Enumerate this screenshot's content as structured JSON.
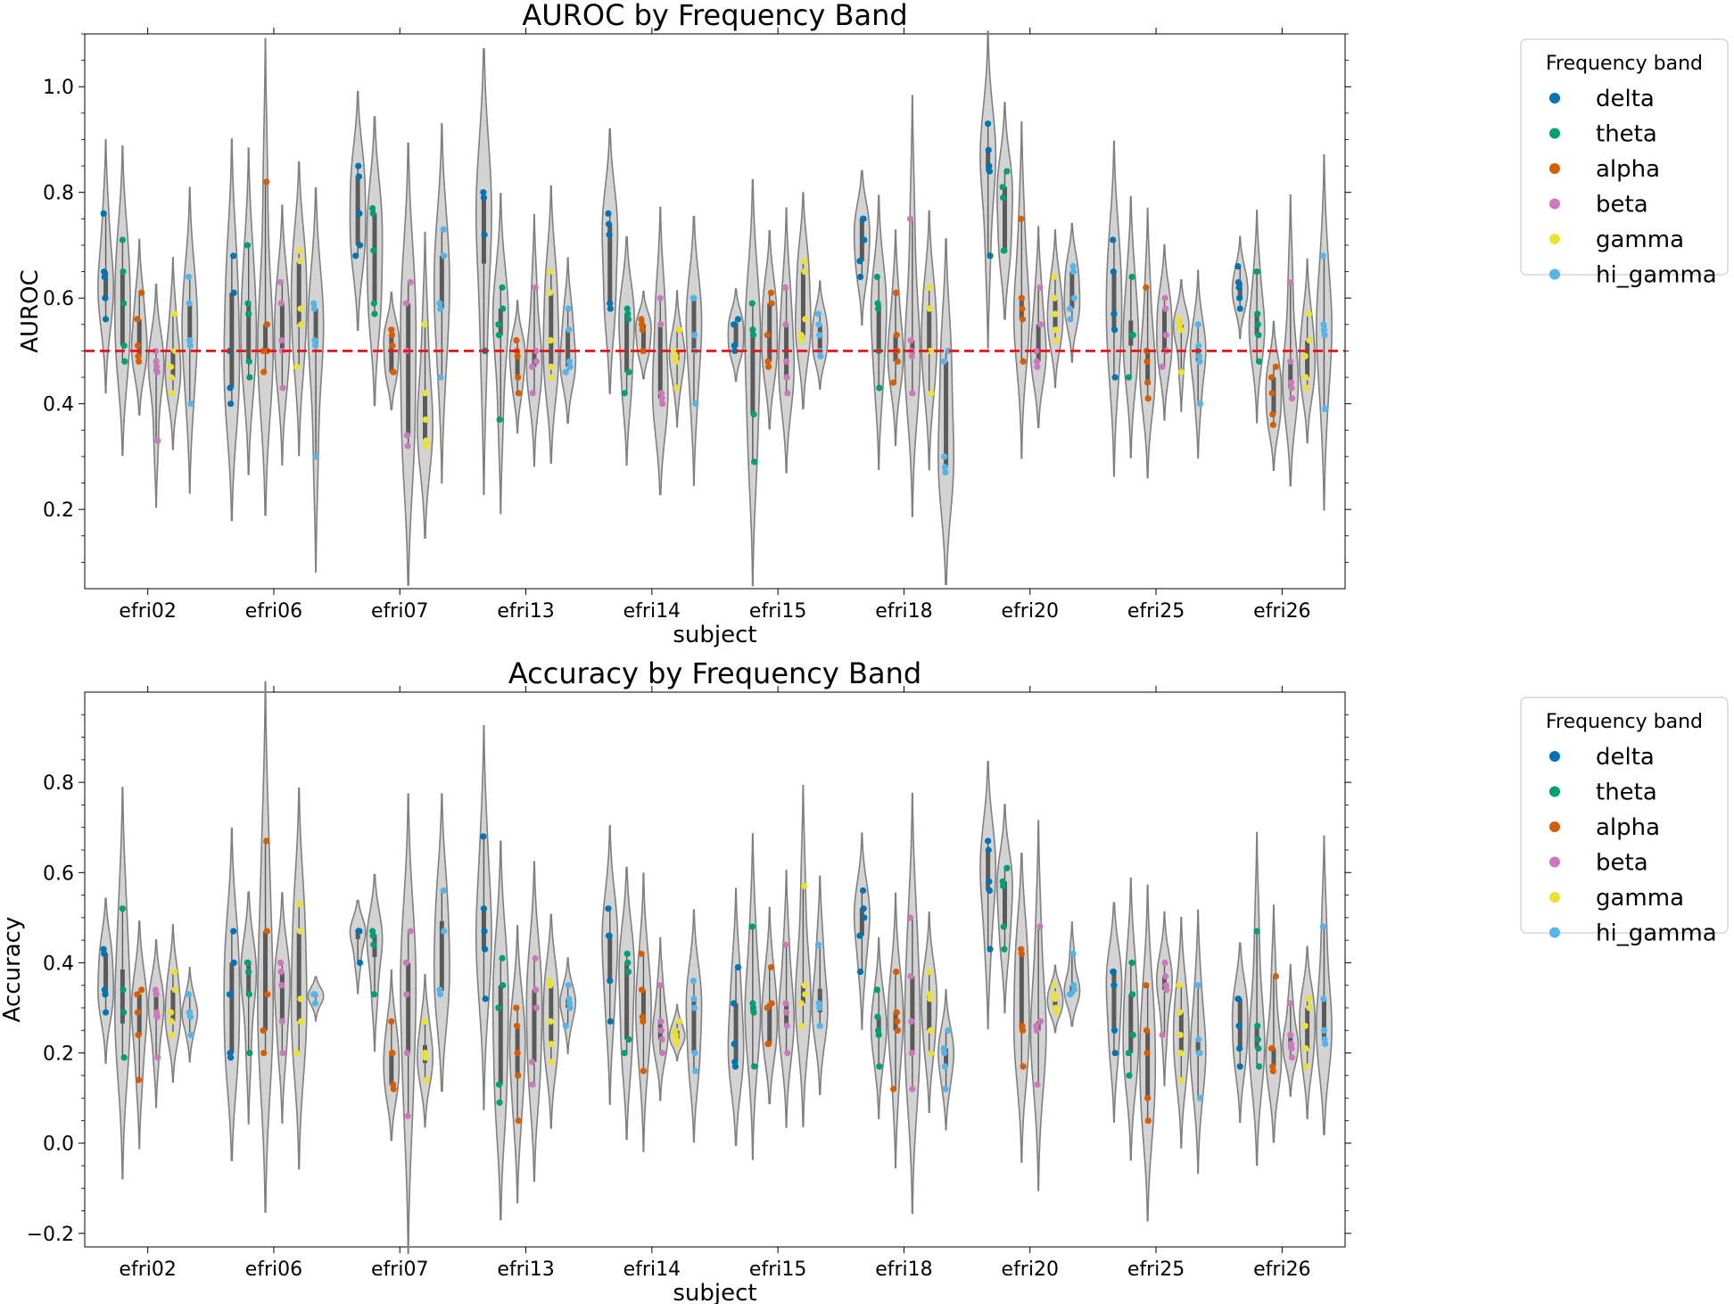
{
  "colors": {
    "delta": "#0173b2",
    "theta": "#029e73",
    "alpha": "#d55e00",
    "beta": "#cc78bc",
    "gamma": "#ece133",
    "hi_gamma": "#56b4e9",
    "violin_fill": "#d3d3d3",
    "violin_edge": "#808080",
    "chance_line": "#e41a1c"
  },
  "chart_data": [
    {
      "type": "violin",
      "title": "AUROC by Frequency Band",
      "xlabel": "subject",
      "ylabel": "AUROC",
      "ylim": [
        0.05,
        1.1
      ],
      "yticks": [
        "0.2",
        "0.4",
        "0.6",
        "0.8",
        "1.0"
      ],
      "reference_line": 0.5,
      "legend": {
        "title": "Frequency band",
        "placement": "outside-right",
        "entries": [
          "delta",
          "theta",
          "alpha",
          "beta",
          "gamma",
          "hi_gamma"
        ]
      },
      "categories": [
        "efri02",
        "efri06",
        "efri07",
        "efri13",
        "efri14",
        "efri15",
        "efri18",
        "efri20",
        "efri25",
        "efri26"
      ],
      "series": [
        {
          "name": "delta",
          "values": [
            [
              0.76,
              0.65,
              0.64,
              0.6,
              0.56
            ],
            [
              0.68,
              0.61,
              0.5,
              0.43,
              0.4
            ],
            [
              0.85,
              0.83,
              0.76,
              0.7,
              0.68
            ],
            [
              0.8,
              0.79,
              0.72,
              0.5
            ],
            [
              0.76,
              0.74,
              0.72,
              0.59,
              0.58
            ],
            [
              0.56,
              0.55,
              0.51,
              0.5
            ],
            [
              0.75,
              0.75,
              0.71,
              0.67,
              0.64
            ],
            [
              0.93,
              0.88,
              0.85,
              0.84,
              0.68
            ],
            [
              0.71,
              0.65,
              0.57,
              0.54,
              0.45
            ],
            [
              0.66,
              0.63,
              0.62,
              0.6,
              0.58
            ]
          ]
        },
        {
          "name": "theta",
          "values": [
            [
              0.71,
              0.65,
              0.59,
              0.51,
              0.48
            ],
            [
              0.7,
              0.59,
              0.57,
              0.48,
              0.45
            ],
            [
              0.77,
              0.76,
              0.69,
              0.59,
              0.57
            ],
            [
              0.62,
              0.58,
              0.55,
              0.53,
              0.37
            ],
            [
              0.58,
              0.57,
              0.56,
              0.46,
              0.42
            ],
            [
              0.59,
              0.54,
              0.53,
              0.38,
              0.29
            ],
            [
              0.64,
              0.59,
              0.58,
              0.5,
              0.43
            ],
            [
              0.84,
              0.81,
              0.79,
              0.69,
              0.69
            ],
            [
              0.64,
              0.53,
              0.53,
              0.45
            ],
            [
              0.65,
              0.57,
              0.55,
              0.53,
              0.48
            ]
          ]
        },
        {
          "name": "alpha",
          "values": [
            [
              0.61,
              0.56,
              0.51,
              0.49,
              0.48
            ],
            [
              0.82,
              0.55,
              0.5,
              0.5,
              0.46
            ],
            [
              0.54,
              0.53,
              0.51,
              0.46,
              0.46
            ],
            [
              0.52,
              0.5,
              0.49,
              0.45,
              0.42
            ],
            [
              0.56,
              0.55,
              0.54,
              0.5,
              0.5
            ],
            [
              0.61,
              0.59,
              0.53,
              0.48,
              0.47
            ],
            [
              0.61,
              0.53,
              0.5,
              0.48,
              0.44
            ],
            [
              0.75,
              0.6,
              0.58,
              0.56,
              0.48
            ],
            [
              0.62,
              0.5,
              0.48,
              0.44,
              0.41
            ],
            [
              0.47,
              0.45,
              0.42,
              0.38,
              0.36
            ]
          ]
        },
        {
          "name": "beta",
          "values": [
            [
              0.5,
              0.48,
              0.47,
              0.46,
              0.33
            ],
            [
              0.63,
              0.59,
              0.52,
              0.5,
              0.43
            ],
            [
              0.63,
              0.59,
              0.5,
              0.34,
              0.32
            ],
            [
              0.62,
              0.5,
              0.48,
              0.47,
              0.42
            ],
            [
              0.6,
              0.55,
              0.42,
              0.41,
              0.4
            ],
            [
              0.62,
              0.55,
              0.48,
              0.45,
              0.42
            ],
            [
              0.75,
              0.52,
              0.5,
              0.49,
              0.42
            ],
            [
              0.62,
              0.55,
              0.5,
              0.48,
              0.47
            ],
            [
              0.6,
              0.58,
              0.53,
              0.5,
              0.47
            ],
            [
              0.63,
              0.48,
              0.44,
              0.43,
              0.41
            ]
          ]
        },
        {
          "name": "gamma",
          "values": [
            [
              0.57,
              0.5,
              0.47,
              0.45,
              0.42
            ],
            [
              0.69,
              0.67,
              0.58,
              0.55,
              0.47
            ],
            [
              0.55,
              0.42,
              0.37,
              0.33,
              0.32
            ],
            [
              0.65,
              0.61,
              0.52,
              0.47,
              0.45
            ],
            [
              0.54,
              0.5,
              0.49,
              0.48,
              0.43
            ],
            [
              0.67,
              0.65,
              0.56,
              0.53,
              0.52
            ],
            [
              0.62,
              0.58,
              0.5,
              0.5,
              0.42
            ],
            [
              0.64,
              0.6,
              0.57,
              0.54,
              0.52
            ],
            [
              0.56,
              0.55,
              0.54,
              0.54,
              0.46
            ],
            [
              0.57,
              0.52,
              0.49,
              0.45,
              0.43
            ]
          ]
        },
        {
          "name": "hi_gamma",
          "values": [
            [
              0.64,
              0.59,
              0.52,
              0.51,
              0.4
            ],
            [
              0.59,
              0.58,
              0.52,
              0.51,
              0.3
            ],
            [
              0.73,
              0.68,
              0.59,
              0.58,
              0.45
            ],
            [
              0.58,
              0.54,
              0.48,
              0.47,
              0.46
            ],
            [
              0.6,
              0.6,
              0.53,
              0.5,
              0.4
            ],
            [
              0.57,
              0.55,
              0.53,
              0.5,
              0.49
            ],
            [
              0.5,
              0.48,
              0.3,
              0.28,
              0.27
            ],
            [
              0.66,
              0.65,
              0.6,
              0.58,
              0.56
            ],
            [
              0.55,
              0.51,
              0.49,
              0.48,
              0.4
            ],
            [
              0.68,
              0.55,
              0.54,
              0.53,
              0.39
            ]
          ]
        }
      ]
    },
    {
      "type": "violin",
      "title": "Accuracy by Frequency Band",
      "xlabel": "subject",
      "ylabel": "Accuracy",
      "ylim": [
        -0.23,
        1.0
      ],
      "yticks": [
        "−0.2",
        "0.0",
        "0.2",
        "0.4",
        "0.6",
        "0.8"
      ],
      "legend": {
        "title": "Frequency band",
        "placement": "outside-right",
        "entries": [
          "delta",
          "theta",
          "alpha",
          "beta",
          "gamma",
          "hi_gamma"
        ]
      },
      "categories": [
        "efri02",
        "efri06",
        "efri07",
        "efri13",
        "efri14",
        "efri15",
        "efri18",
        "efri20",
        "efri25",
        "efri26"
      ],
      "series": [
        {
          "name": "delta",
          "values": [
            [
              0.43,
              0.42,
              0.34,
              0.33,
              0.29
            ],
            [
              0.47,
              0.4,
              0.33,
              0.2,
              0.19
            ],
            [
              0.47,
              0.47,
              0.47,
              0.4
            ],
            [
              0.68,
              0.52,
              0.47,
              0.43,
              0.32
            ],
            [
              0.52,
              0.46,
              0.46,
              0.36,
              0.27
            ],
            [
              0.39,
              0.31,
              0.22,
              0.18,
              0.17
            ],
            [
              0.56,
              0.52,
              0.5,
              0.46,
              0.38
            ],
            [
              0.67,
              0.65,
              0.58,
              0.56,
              0.43
            ],
            [
              0.38,
              0.38,
              0.35,
              0.25,
              0.2
            ],
            [
              0.32,
              0.32,
              0.26,
              0.21,
              0.17
            ]
          ]
        },
        {
          "name": "theta",
          "values": [
            [
              0.52,
              0.34,
              0.29,
              0.19
            ],
            [
              0.4,
              0.4,
              0.38,
              0.33,
              0.2
            ],
            [
              0.47,
              0.46,
              0.44,
              0.33
            ],
            [
              0.41,
              0.35,
              0.3,
              0.13,
              0.09
            ],
            [
              0.42,
              0.4,
              0.38,
              0.23,
              0.2
            ],
            [
              0.48,
              0.31,
              0.3,
              0.29,
              0.17
            ],
            [
              0.34,
              0.28,
              0.25,
              0.24,
              0.17
            ],
            [
              0.61,
              0.58,
              0.57,
              0.48,
              0.43
            ],
            [
              0.4,
              0.33,
              0.24,
              0.2,
              0.15
            ],
            [
              0.47,
              0.26,
              0.23,
              0.21,
              0.17
            ]
          ]
        },
        {
          "name": "alpha",
          "values": [
            [
              0.34,
              0.33,
              0.29,
              0.24,
              0.14
            ],
            [
              0.67,
              0.47,
              0.33,
              0.25,
              0.2
            ],
            [
              0.27,
              0.2,
              0.2,
              0.13,
              0.12
            ],
            [
              0.3,
              0.26,
              0.2,
              0.15,
              0.05
            ],
            [
              0.42,
              0.34,
              0.28,
              0.27,
              0.16
            ],
            [
              0.39,
              0.31,
              0.3,
              0.22,
              0.22
            ],
            [
              0.38,
              0.29,
              0.27,
              0.25,
              0.12
            ],
            [
              0.43,
              0.42,
              0.26,
              0.25,
              0.17
            ],
            [
              0.35,
              0.25,
              0.2,
              0.1,
              0.05
            ],
            [
              0.37,
              0.21,
              0.21,
              0.17,
              0.16
            ]
          ]
        },
        {
          "name": "beta",
          "values": [
            [
              0.34,
              0.33,
              0.29,
              0.28,
              0.19
            ],
            [
              0.4,
              0.38,
              0.35,
              0.27,
              0.2
            ],
            [
              0.47,
              0.4,
              0.33,
              0.2,
              0.06
            ],
            [
              0.41,
              0.34,
              0.3,
              0.18,
              0.13
            ],
            [
              0.35,
              0.27,
              0.25,
              0.23,
              0.2
            ],
            [
              0.44,
              0.31,
              0.29,
              0.26,
              0.2
            ],
            [
              0.5,
              0.37,
              0.27,
              0.2,
              0.12
            ],
            [
              0.48,
              0.27,
              0.26,
              0.25,
              0.13
            ],
            [
              0.4,
              0.37,
              0.35,
              0.34,
              0.24
            ],
            [
              0.31,
              0.24,
              0.22,
              0.21,
              0.19
            ]
          ]
        },
        {
          "name": "gamma",
          "values": [
            [
              0.38,
              0.34,
              0.29,
              0.27,
              0.24
            ],
            [
              0.53,
              0.47,
              0.32,
              0.27,
              0.2
            ],
            [
              0.27,
              0.2,
              0.19,
              0.14
            ],
            [
              0.36,
              0.35,
              0.27,
              0.22,
              0.18
            ],
            [
              0.27,
              0.25,
              0.24,
              0.23,
              0.22
            ],
            [
              0.57,
              0.35,
              0.33,
              0.31,
              0.26
            ],
            [
              0.38,
              0.33,
              0.32,
              0.25,
              0.2
            ],
            [
              0.35,
              0.33,
              0.32,
              0.3,
              0.29
            ],
            [
              0.35,
              0.29,
              0.24,
              0.2,
              0.14
            ],
            [
              0.32,
              0.3,
              0.26,
              0.21,
              0.17
            ]
          ]
        },
        {
          "name": "hi_gamma",
          "values": [
            [
              0.33,
              0.29,
              0.29,
              0.28,
              0.24
            ],
            [
              0.33,
              0.33,
              0.33,
              0.31
            ],
            [
              0.56,
              0.47,
              0.34,
              0.33
            ],
            [
              0.35,
              0.32,
              0.31,
              0.3,
              0.26
            ],
            [
              0.36,
              0.32,
              0.3,
              0.2,
              0.16
            ],
            [
              0.44,
              0.31,
              0.3,
              0.26
            ],
            [
              0.25,
              0.21,
              0.2,
              0.17,
              0.12
            ],
            [
              0.42,
              0.35,
              0.34,
              0.33,
              0.33
            ],
            [
              0.35,
              0.23,
              0.2,
              0.2,
              0.1
            ],
            [
              0.48,
              0.32,
              0.25,
              0.23,
              0.22
            ]
          ]
        }
      ]
    }
  ]
}
